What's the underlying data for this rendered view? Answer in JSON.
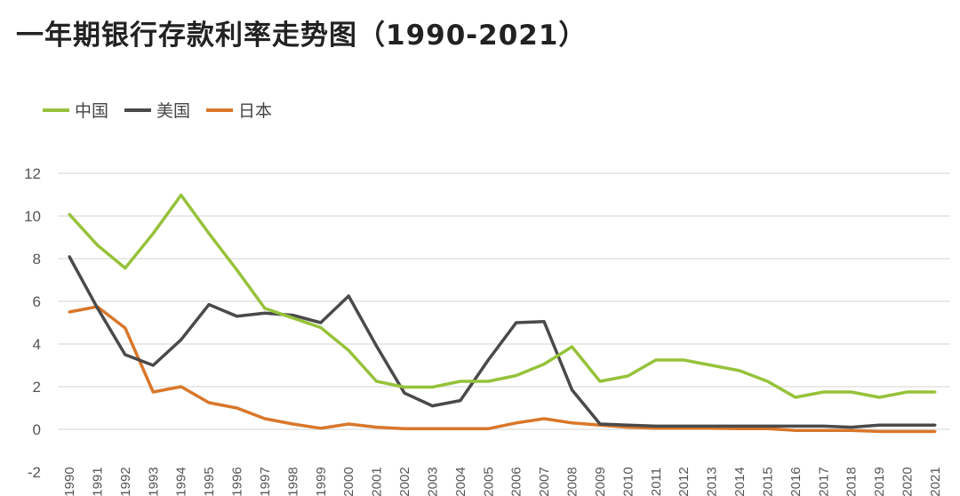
{
  "chart_data": {
    "type": "line",
    "title": "一年期银行存款利率走势图（1990-2021）",
    "xlabel": "",
    "ylabel": "",
    "ylim": [
      -2,
      12
    ],
    "yticks": [
      12,
      10,
      8,
      6,
      4,
      2,
      0,
      -2
    ],
    "grid": true,
    "legend_position": "top-left",
    "categories": [
      "1990",
      "1991",
      "1992",
      "1993",
      "1994",
      "1995",
      "1996",
      "1997",
      "1998",
      "1999",
      "2000",
      "2001",
      "2002",
      "2003",
      "2004",
      "2005",
      "2006",
      "2007",
      "2008",
      "2009",
      "2010",
      "2011",
      "2012",
      "2013",
      "2014",
      "2015",
      "2016",
      "2017",
      "2018",
      "2019",
      "2020",
      "2021"
    ],
    "series": [
      {
        "name": "中国",
        "color": "#96c23a",
        "values": [
          10.08,
          8.64,
          7.56,
          9.18,
          10.98,
          9.18,
          7.47,
          5.67,
          5.22,
          4.77,
          3.7,
          2.25,
          1.98,
          1.98,
          2.25,
          2.25,
          2.52,
          3.06,
          3.87,
          2.25,
          2.5,
          3.25,
          3.25,
          3.0,
          2.75,
          2.25,
          1.5,
          1.75,
          1.75,
          1.5,
          1.75,
          1.75
        ]
      },
      {
        "name": "美国",
        "color": "#4a4a4a",
        "values": [
          8.1,
          5.7,
          3.5,
          3.0,
          4.2,
          5.85,
          5.3,
          5.45,
          5.35,
          5.0,
          6.25,
          3.9,
          1.7,
          1.1,
          1.35,
          3.25,
          5.0,
          5.05,
          1.85,
          0.25,
          0.2,
          0.15,
          0.15,
          0.15,
          0.15,
          0.15,
          0.15,
          0.15,
          0.1,
          0.2,
          0.2,
          0.2
        ]
      },
      {
        "name": "日本",
        "color": "#d9772a",
        "values": [
          5.5,
          5.75,
          4.75,
          1.75,
          2.0,
          1.25,
          1.0,
          0.5,
          0.25,
          0.05,
          0.25,
          0.1,
          0.03,
          0.03,
          0.03,
          0.03,
          0.3,
          0.5,
          0.3,
          0.2,
          0.1,
          0.05,
          0.05,
          0.05,
          0.03,
          0.03,
          -0.05,
          -0.05,
          -0.05,
          -0.1,
          -0.1,
          -0.1
        ]
      }
    ]
  }
}
